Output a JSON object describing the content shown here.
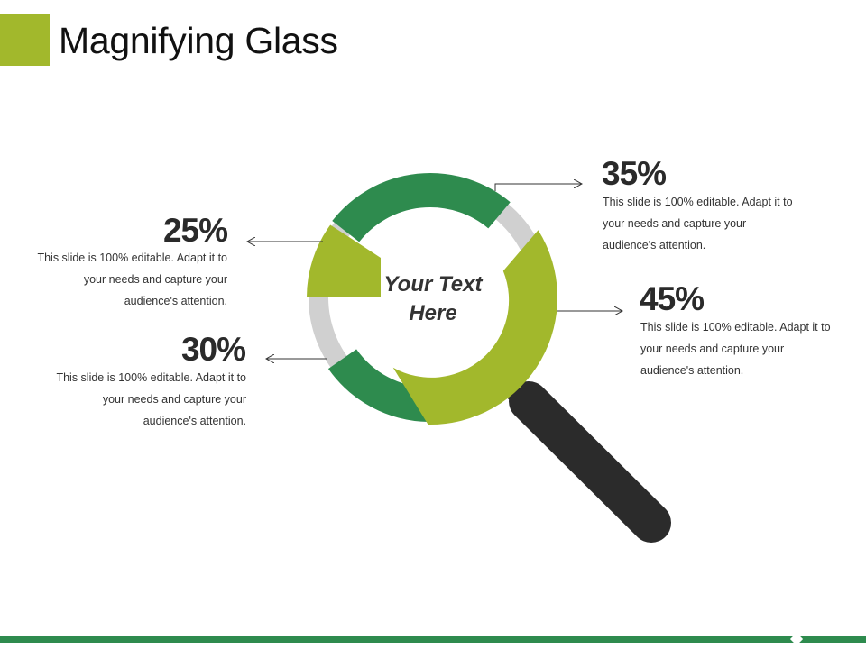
{
  "title": "Magnifying Glass",
  "center_text": [
    "Your Text",
    "Here"
  ],
  "colors": {
    "dark_green": "#2e8b4e",
    "light_green": "#a2b82c",
    "gray": "#d0d0d0",
    "handle": "#2b2b2b",
    "accent_square": "#a2b82c",
    "bottom_bar": "#2e8b4e"
  },
  "callouts": [
    {
      "id": "c25",
      "percent": "25%",
      "text": "This slide is 100% editable. Adapt it to your needs and capture your audience's attention."
    },
    {
      "id": "c30",
      "percent": "30%",
      "text": "This slide is 100% editable. Adapt it to your needs and capture your audience's attention."
    },
    {
      "id": "c35",
      "percent": "35%",
      "text": "This slide is 100% editable. Adapt it to your needs and capture your audience's attention."
    },
    {
      "id": "c45",
      "percent": "45%",
      "text": "This slide is 100% editable. Adapt it to your needs and capture your audience's attention."
    }
  ]
}
